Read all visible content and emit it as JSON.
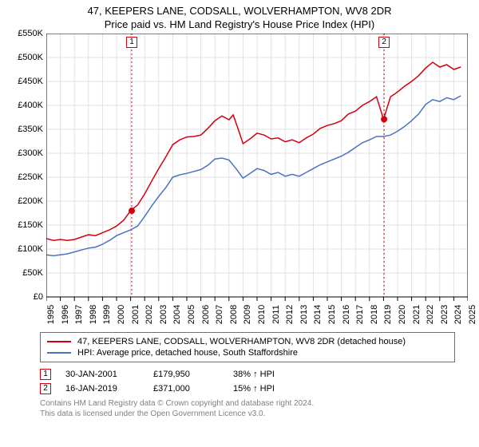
{
  "title_line1": "47, KEEPERS LANE, CODSALL, WOLVERHAMPTON, WV8 2DR",
  "title_line2": "Price paid vs. HM Land Registry's House Price Index (HPI)",
  "chart": {
    "type": "line",
    "background_color": "#ffffff",
    "grid_color": "#e0e0e0",
    "axis_color": "#000000",
    "tick_fontsize": 11,
    "x": {
      "min": 1995,
      "max": 2025,
      "ticks": [
        1995,
        1996,
        1997,
        1998,
        1999,
        2000,
        2001,
        2002,
        2003,
        2004,
        2005,
        2006,
        2007,
        2008,
        2009,
        2010,
        2011,
        2012,
        2013,
        2014,
        2015,
        2016,
        2017,
        2018,
        2019,
        2020,
        2021,
        2022,
        2023,
        2024,
        2025
      ]
    },
    "y": {
      "min": 0,
      "max": 550,
      "ticks": [
        0,
        50,
        100,
        150,
        200,
        250,
        300,
        350,
        400,
        450,
        500,
        550
      ],
      "tick_labels": [
        "£0",
        "£50K",
        "£100K",
        "£150K",
        "£200K",
        "£250K",
        "£300K",
        "£350K",
        "£400K",
        "£450K",
        "£500K",
        "£550K"
      ]
    },
    "series_property": {
      "color": "#d4000f",
      "line_width": 1.5,
      "data": [
        [
          1995,
          122
        ],
        [
          1995.5,
          118
        ],
        [
          1996,
          120
        ],
        [
          1996.5,
          118
        ],
        [
          1997,
          120
        ],
        [
          1997.5,
          125
        ],
        [
          1998,
          130
        ],
        [
          1998.5,
          128
        ],
        [
          1999,
          134
        ],
        [
          1999.5,
          140
        ],
        [
          2000,
          148
        ],
        [
          2000.5,
          160
        ],
        [
          2001,
          179.95
        ],
        [
          2001.5,
          192
        ],
        [
          2002,
          215
        ],
        [
          2002.5,
          242
        ],
        [
          2003,
          268
        ],
        [
          2003.5,
          292
        ],
        [
          2004,
          318
        ],
        [
          2004.5,
          328
        ],
        [
          2005,
          334
        ],
        [
          2005.5,
          335
        ],
        [
          2006,
          338
        ],
        [
          2006.5,
          352
        ],
        [
          2007,
          368
        ],
        [
          2007.5,
          378
        ],
        [
          2008,
          370
        ],
        [
          2008.3,
          380
        ],
        [
          2008.6,
          355
        ],
        [
          2009,
          320
        ],
        [
          2009.5,
          330
        ],
        [
          2010,
          342
        ],
        [
          2010.5,
          338
        ],
        [
          2011,
          330
        ],
        [
          2011.5,
          332
        ],
        [
          2012,
          324
        ],
        [
          2012.5,
          328
        ],
        [
          2013,
          322
        ],
        [
          2013.5,
          332
        ],
        [
          2014,
          340
        ],
        [
          2014.5,
          352
        ],
        [
          2015,
          358
        ],
        [
          2015.5,
          362
        ],
        [
          2016,
          368
        ],
        [
          2016.5,
          382
        ],
        [
          2017,
          388
        ],
        [
          2017.5,
          400
        ],
        [
          2018,
          408
        ],
        [
          2018.5,
          418
        ],
        [
          2019,
          371
        ],
        [
          2019.5,
          418
        ],
        [
          2020,
          428
        ],
        [
          2020.5,
          440
        ],
        [
          2021,
          450
        ],
        [
          2021.5,
          462
        ],
        [
          2022,
          478
        ],
        [
          2022.5,
          490
        ],
        [
          2023,
          480
        ],
        [
          2023.5,
          485
        ],
        [
          2024,
          475
        ],
        [
          2024.5,
          480
        ]
      ]
    },
    "series_hpi": {
      "color": "#4a72c0",
      "line_width": 1.5,
      "data": [
        [
          1995,
          88
        ],
        [
          1995.5,
          86
        ],
        [
          1996,
          88
        ],
        [
          1996.5,
          90
        ],
        [
          1997,
          94
        ],
        [
          1997.5,
          98
        ],
        [
          1998,
          102
        ],
        [
          1998.5,
          104
        ],
        [
          1999,
          110
        ],
        [
          1999.5,
          118
        ],
        [
          2000,
          128
        ],
        [
          2000.5,
          134
        ],
        [
          2001,
          140
        ],
        [
          2001.5,
          148
        ],
        [
          2002,
          168
        ],
        [
          2002.5,
          190
        ],
        [
          2003,
          210
        ],
        [
          2003.5,
          228
        ],
        [
          2004,
          250
        ],
        [
          2004.5,
          255
        ],
        [
          2005,
          258
        ],
        [
          2005.5,
          262
        ],
        [
          2006,
          266
        ],
        [
          2006.5,
          275
        ],
        [
          2007,
          288
        ],
        [
          2007.5,
          290
        ],
        [
          2008,
          286
        ],
        [
          2008.5,
          268
        ],
        [
          2009,
          248
        ],
        [
          2009.5,
          258
        ],
        [
          2010,
          268
        ],
        [
          2010.5,
          264
        ],
        [
          2011,
          256
        ],
        [
          2011.5,
          260
        ],
        [
          2012,
          252
        ],
        [
          2012.5,
          256
        ],
        [
          2013,
          252
        ],
        [
          2013.5,
          260
        ],
        [
          2014,
          268
        ],
        [
          2014.5,
          276
        ],
        [
          2015,
          282
        ],
        [
          2015.5,
          288
        ],
        [
          2016,
          294
        ],
        [
          2016.5,
          302
        ],
        [
          2017,
          312
        ],
        [
          2017.5,
          322
        ],
        [
          2018,
          328
        ],
        [
          2018.5,
          335
        ],
        [
          2019,
          335
        ],
        [
          2019.5,
          338
        ],
        [
          2020,
          346
        ],
        [
          2020.5,
          356
        ],
        [
          2021,
          368
        ],
        [
          2021.5,
          382
        ],
        [
          2022,
          402
        ],
        [
          2022.5,
          412
        ],
        [
          2023,
          408
        ],
        [
          2023.5,
          416
        ],
        [
          2024,
          412
        ],
        [
          2024.5,
          420
        ]
      ]
    },
    "transactions": [
      {
        "index": "1",
        "year": 2001.08,
        "price": 179.95,
        "marker_color": "#d4000f",
        "vline_color": "#d4000f"
      },
      {
        "index": "2",
        "year": 2019.04,
        "price": 371,
        "marker_color": "#d4000f",
        "vline_color": "#d4000f"
      }
    ]
  },
  "legend": {
    "border_color": "#707070",
    "rows": [
      {
        "color": "#d4000f",
        "label": "47, KEEPERS LANE, CODSALL, WOLVERHAMPTON, WV8 2DR (detached house)"
      },
      {
        "color": "#4a72c0",
        "label": "HPI: Average price, detached house, South Staffordshire"
      }
    ]
  },
  "transactions_table": [
    {
      "index": "1",
      "marker_border": "#d4000f",
      "date": "30-JAN-2001",
      "price": "£179,950",
      "diff": "38% ↑ HPI"
    },
    {
      "index": "2",
      "marker_border": "#d4000f",
      "date": "16-JAN-2019",
      "price": "£371,000",
      "diff": "15% ↑ HPI"
    }
  ],
  "footer_line1": "Contains HM Land Registry data © Crown copyright and database right 2024.",
  "footer_line2": "This data is licensed under the Open Government Licence v3.0."
}
